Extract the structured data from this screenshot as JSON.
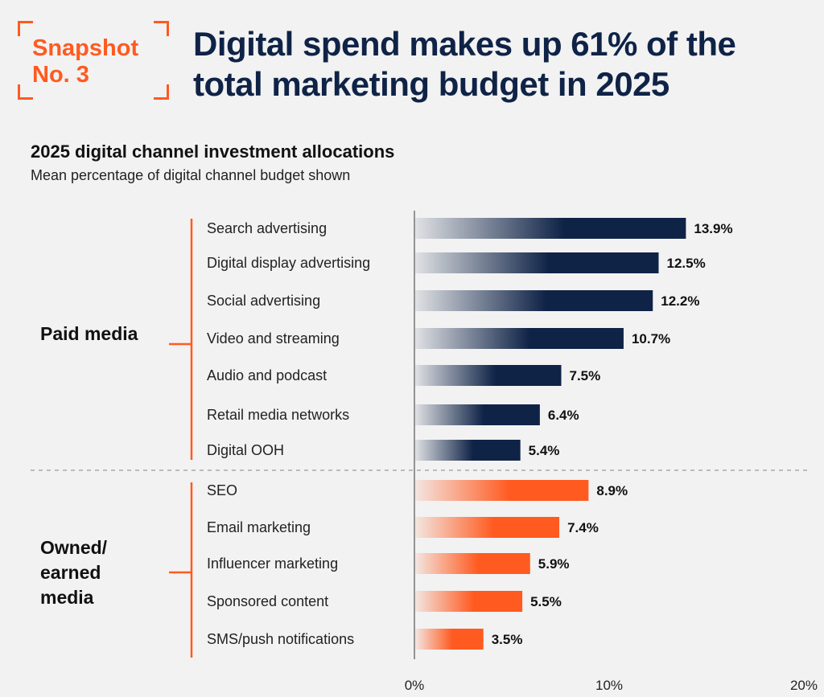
{
  "snapshot": {
    "line1": "Snapshot",
    "line2": "No. 3"
  },
  "headline": "Digital spend makes up 61% of the total marketing budget in 2025",
  "chart_data": {
    "type": "bar",
    "orientation": "horizontal",
    "title": "2025 digital channel investment allocations",
    "subtitle": "Mean percentage of digital channel budget shown",
    "groups": [
      {
        "name": "Paid media",
        "color": "#0f2347",
        "categories": [
          "Search advertising",
          "Digital display advertising",
          "Social advertising",
          "Video and streaming",
          "Audio and podcast",
          "Retail media networks",
          "Digital OOH"
        ],
        "values": [
          13.9,
          12.5,
          12.2,
          10.7,
          7.5,
          6.4,
          5.4
        ],
        "value_labels": [
          "13.9%",
          "12.5%",
          "12.2%",
          "10.7%",
          "7.5%",
          "6.4%",
          "5.4%"
        ]
      },
      {
        "name": "Owned/ earned media",
        "color": "#ff5a1f",
        "categories": [
          "SEO",
          "Email marketing",
          "Influencer marketing",
          "Sponsored content",
          "SMS/push notifications"
        ],
        "values": [
          8.9,
          7.4,
          5.9,
          5.5,
          3.5
        ],
        "value_labels": [
          "8.9%",
          "7.4%",
          "5.9%",
          "5.5%",
          "3.5%"
        ]
      }
    ],
    "xlim": [
      0,
      20
    ],
    "xticks": [
      "0%",
      "10%",
      "20%"
    ],
    "grid": false,
    "legend": "none"
  }
}
